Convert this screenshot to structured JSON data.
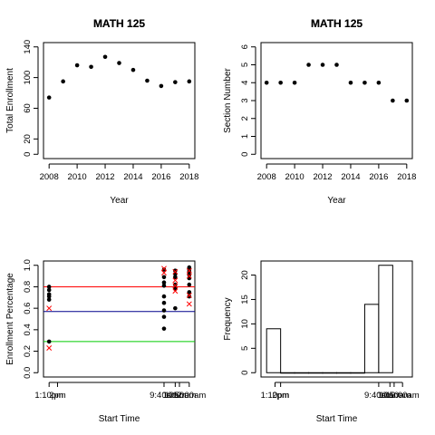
{
  "chart_data": [
    {
      "id": "p1",
      "type": "scatter",
      "title": "MATH 125",
      "xlabel": "Year",
      "ylabel": "Total Enrollment",
      "xlim": [
        2008,
        2018
      ],
      "ylim": [
        0,
        140
      ],
      "xticks": [
        2008,
        2010,
        2012,
        2014,
        2016,
        2018
      ],
      "yticks": [
        0,
        20,
        60,
        100,
        140
      ],
      "series": [
        {
          "x": [
            2008,
            2009,
            2010,
            2011,
            2012,
            2013,
            2014,
            2015,
            2016,
            2017,
            2018
          ],
          "y": [
            74,
            95,
            116,
            114,
            127,
            119,
            110,
            96,
            89,
            94,
            95
          ]
        }
      ]
    },
    {
      "id": "p2",
      "type": "scatter",
      "title": "MATH 125",
      "xlabel": "Year",
      "ylabel": "Section Number",
      "xlim": [
        2008,
        2018
      ],
      "ylim": [
        0,
        6
      ],
      "xticks": [
        2008,
        2010,
        2012,
        2014,
        2016,
        2018
      ],
      "yticks": [
        0,
        1,
        2,
        3,
        4,
        5,
        6
      ],
      "series": [
        {
          "x": [
            2008,
            2009,
            2010,
            2011,
            2012,
            2013,
            2014,
            2015,
            2016,
            2017,
            2018
          ],
          "y": [
            4,
            4,
            4,
            5,
            5,
            5,
            4,
            4,
            4,
            3,
            3
          ]
        }
      ]
    },
    {
      "id": "p3",
      "type": "scatter",
      "title": "MATH 125",
      "xlabel": "Start Time",
      "ylabel": "Enrollment Percentage",
      "xlim": [
        0,
        10
      ],
      "ylim": [
        0,
        1
      ],
      "xticks": [
        {
          "pos": 0,
          "label": "1:10pm"
        },
        {
          "pos": 0.6,
          "label": "2pm"
        },
        {
          "pos": 8.2,
          "label": "9:40am"
        },
        {
          "pos": 9.0,
          "label": "10am"
        },
        {
          "pos": 9.3,
          "label": "10:50am"
        },
        {
          "pos": 10,
          "label": "12:00am"
        }
      ],
      "yticks": [
        0.0,
        0.2,
        0.4,
        0.6,
        0.8,
        1.0
      ],
      "hlines": [
        {
          "y": 0.8,
          "color": "#ff0000"
        },
        {
          "y": 0.57,
          "color": "#00008b"
        },
        {
          "y": 0.29,
          "color": "#00cc00"
        }
      ],
      "points": [
        {
          "x": 0,
          "y": 0.8
        },
        {
          "x": 0,
          "y": 0.77
        },
        {
          "x": 0,
          "y": 0.73
        },
        {
          "x": 0,
          "y": 0.71
        },
        {
          "x": 0,
          "y": 0.68
        },
        {
          "x": 0,
          "y": 0.29
        },
        {
          "x": 8.2,
          "y": 0.96
        },
        {
          "x": 8.2,
          "y": 0.89
        },
        {
          "x": 8.2,
          "y": 0.84
        },
        {
          "x": 8.2,
          "y": 0.81
        },
        {
          "x": 8.2,
          "y": 0.71
        },
        {
          "x": 8.2,
          "y": 0.65
        },
        {
          "x": 8.2,
          "y": 0.58
        },
        {
          "x": 8.2,
          "y": 0.52
        },
        {
          "x": 8.2,
          "y": 0.41
        },
        {
          "x": 9.0,
          "y": 0.95
        },
        {
          "x": 9.0,
          "y": 0.92
        },
        {
          "x": 9.0,
          "y": 0.89
        },
        {
          "x": 9.0,
          "y": 0.82
        },
        {
          "x": 9.0,
          "y": 0.78
        },
        {
          "x": 9.0,
          "y": 0.6
        },
        {
          "x": 10,
          "y": 0.98
        },
        {
          "x": 10,
          "y": 0.96
        },
        {
          "x": 10,
          "y": 0.94
        },
        {
          "x": 10,
          "y": 0.91
        },
        {
          "x": 10,
          "y": 0.88
        },
        {
          "x": 10,
          "y": 0.82
        },
        {
          "x": 10,
          "y": 0.75
        },
        {
          "x": 10,
          "y": 0.71
        }
      ],
      "crosses": [
        {
          "x": 0,
          "y": 0.6
        },
        {
          "x": 0,
          "y": 0.23
        },
        {
          "x": 8.2,
          "y": 0.97
        },
        {
          "x": 8.2,
          "y": 0.93
        },
        {
          "x": 9.0,
          "y": 0.94
        },
        {
          "x": 9.0,
          "y": 0.86
        },
        {
          "x": 9.0,
          "y": 0.81
        },
        {
          "x": 9.0,
          "y": 0.76
        },
        {
          "x": 10,
          "y": 0.95
        },
        {
          "x": 10,
          "y": 0.9
        },
        {
          "x": 10,
          "y": 0.72
        },
        {
          "x": 10,
          "y": 0.64
        }
      ],
      "cross_color": "#ff0000"
    },
    {
      "id": "p4",
      "type": "bar",
      "title": "MATH 125",
      "xlabel": "Start Time",
      "ylabel": "Frequency",
      "xlim": [
        0,
        10
      ],
      "ylim": [
        0,
        22
      ],
      "xticks": [
        {
          "pos": 0.6,
          "label": "1:10pm"
        },
        {
          "pos": 1.0,
          "label": "2pm"
        },
        {
          "pos": 8.0,
          "label": "9:40am"
        },
        {
          "pos": 8.8,
          "label": "10am"
        },
        {
          "pos": 9.1,
          "label": "10:50am"
        },
        {
          "pos": 9.7,
          "label": "12:00am"
        }
      ],
      "yticks": [
        0,
        5,
        10,
        15,
        20
      ],
      "bins": [
        {
          "from": 0,
          "to": 1,
          "value": 9
        },
        {
          "from": 1,
          "to": 2,
          "value": 0
        },
        {
          "from": 2,
          "to": 3,
          "value": 0
        },
        {
          "from": 3,
          "to": 4,
          "value": 0
        },
        {
          "from": 4,
          "to": 5,
          "value": 0
        },
        {
          "from": 5,
          "to": 6,
          "value": 0
        },
        {
          "from": 6,
          "to": 7,
          "value": 0
        },
        {
          "from": 7,
          "to": 8,
          "value": 14
        },
        {
          "from": 8,
          "to": 9,
          "value": 22
        }
      ]
    }
  ]
}
